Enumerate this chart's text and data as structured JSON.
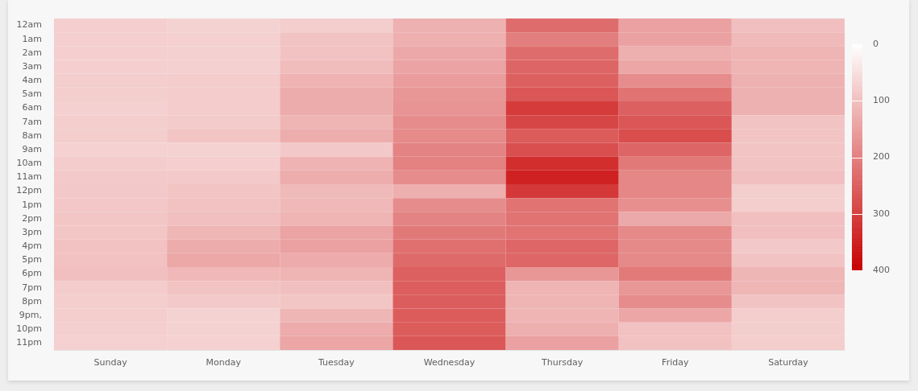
{
  "chart_data": {
    "type": "heatmap",
    "categories": [
      "Sunday",
      "Monday",
      "Tuesday",
      "Wednesday",
      "Thursday",
      "Friday",
      "Saturday"
    ],
    "y_categories": [
      "12am",
      "1am",
      "2am",
      "3am",
      "4am",
      "5am",
      "6am",
      "7am",
      "8am",
      "9am",
      "10am",
      "11am",
      "12pm",
      "1pm",
      "2pm",
      "3pm",
      "4pm",
      "5pm",
      "6pm",
      "7pm",
      "8pm",
      "9pm,",
      "10pm",
      "11pm"
    ],
    "cells": [
      [
        76,
        70,
        78,
        123,
        230,
        148,
        100
      ],
      [
        76,
        74,
        94,
        125,
        203,
        148,
        108
      ],
      [
        76,
        74,
        96,
        136,
        230,
        125,
        118
      ],
      [
        76,
        74,
        105,
        144,
        242,
        140,
        118
      ],
      [
        78,
        80,
        120,
        156,
        250,
        180,
        123
      ],
      [
        78,
        80,
        130,
        164,
        265,
        220,
        123
      ],
      [
        74,
        80,
        130,
        168,
        308,
        250,
        123
      ],
      [
        78,
        82,
        118,
        180,
        290,
        265,
        94
      ],
      [
        78,
        92,
        128,
        184,
        258,
        280,
        92
      ],
      [
        72,
        70,
        86,
        195,
        277,
        242,
        92
      ],
      [
        80,
        76,
        120,
        198,
        328,
        210,
        94
      ],
      [
        84,
        84,
        128,
        180,
        348,
        188,
        100
      ],
      [
        86,
        92,
        108,
        125,
        312,
        188,
        78
      ],
      [
        88,
        95,
        112,
        180,
        220,
        175,
        78
      ],
      [
        90,
        100,
        118,
        195,
        220,
        135,
        100
      ],
      [
        90,
        115,
        145,
        210,
        220,
        185,
        100
      ],
      [
        96,
        130,
        148,
        226,
        240,
        185,
        86
      ],
      [
        96,
        138,
        132,
        234,
        240,
        185,
        94
      ],
      [
        100,
        112,
        118,
        250,
        165,
        208,
        114
      ],
      [
        80,
        94,
        100,
        252,
        118,
        165,
        114
      ],
      [
        78,
        84,
        90,
        254,
        118,
        180,
        94
      ],
      [
        78,
        70,
        114,
        256,
        118,
        140,
        78
      ],
      [
        76,
        70,
        132,
        256,
        125,
        98,
        78
      ],
      [
        74,
        72,
        140,
        265,
        148,
        98,
        78
      ]
    ],
    "clim": [
      0,
      400
    ],
    "cticks": [
      0,
      100,
      200,
      300,
      400
    ]
  }
}
